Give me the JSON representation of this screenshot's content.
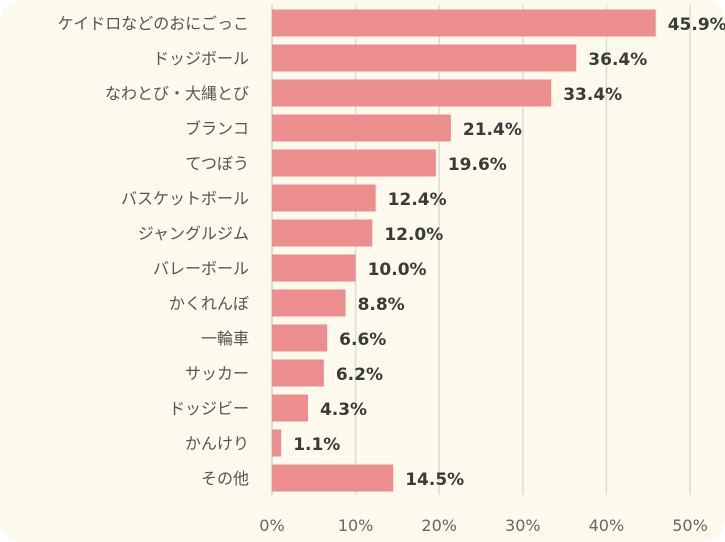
{
  "chart_data": {
    "type": "bar",
    "orientation": "horizontal",
    "title": "",
    "xlabel": "",
    "ylabel": "",
    "categories": [
      "ケイドロなどのおにごっこ",
      "ドッジボール",
      "なわとび・大縄とび",
      "ブランコ",
      "てつぼう",
      "バスケットボール",
      "ジャングルジム",
      "バレーボール",
      "かくれんぼ",
      "一輪車",
      "サッカー",
      "ドッジビー",
      "かんけり",
      "その他"
    ],
    "values": [
      45.9,
      36.4,
      33.4,
      21.4,
      19.6,
      12.4,
      12.0,
      10.0,
      8.8,
      6.6,
      6.2,
      4.3,
      1.1,
      14.5
    ],
    "value_labels": [
      "45.9%",
      "36.4%",
      "33.4%",
      "21.4%",
      "19.6%",
      "12.4%",
      "12.0%",
      "10.0%",
      "8.8%",
      "6.6%",
      "6.2%",
      "4.3%",
      "1.1%",
      "14.5%"
    ],
    "xlim": [
      0,
      50
    ],
    "xticks": [
      0,
      10,
      20,
      30,
      40,
      50
    ],
    "xtick_labels": [
      "0%",
      "10%",
      "20%",
      "30%",
      "40%",
      "50%"
    ],
    "grid": true,
    "colors": {
      "bar": "#ec8e8e",
      "background": "#fcfaec",
      "grid": "#dcdcd6"
    }
  }
}
